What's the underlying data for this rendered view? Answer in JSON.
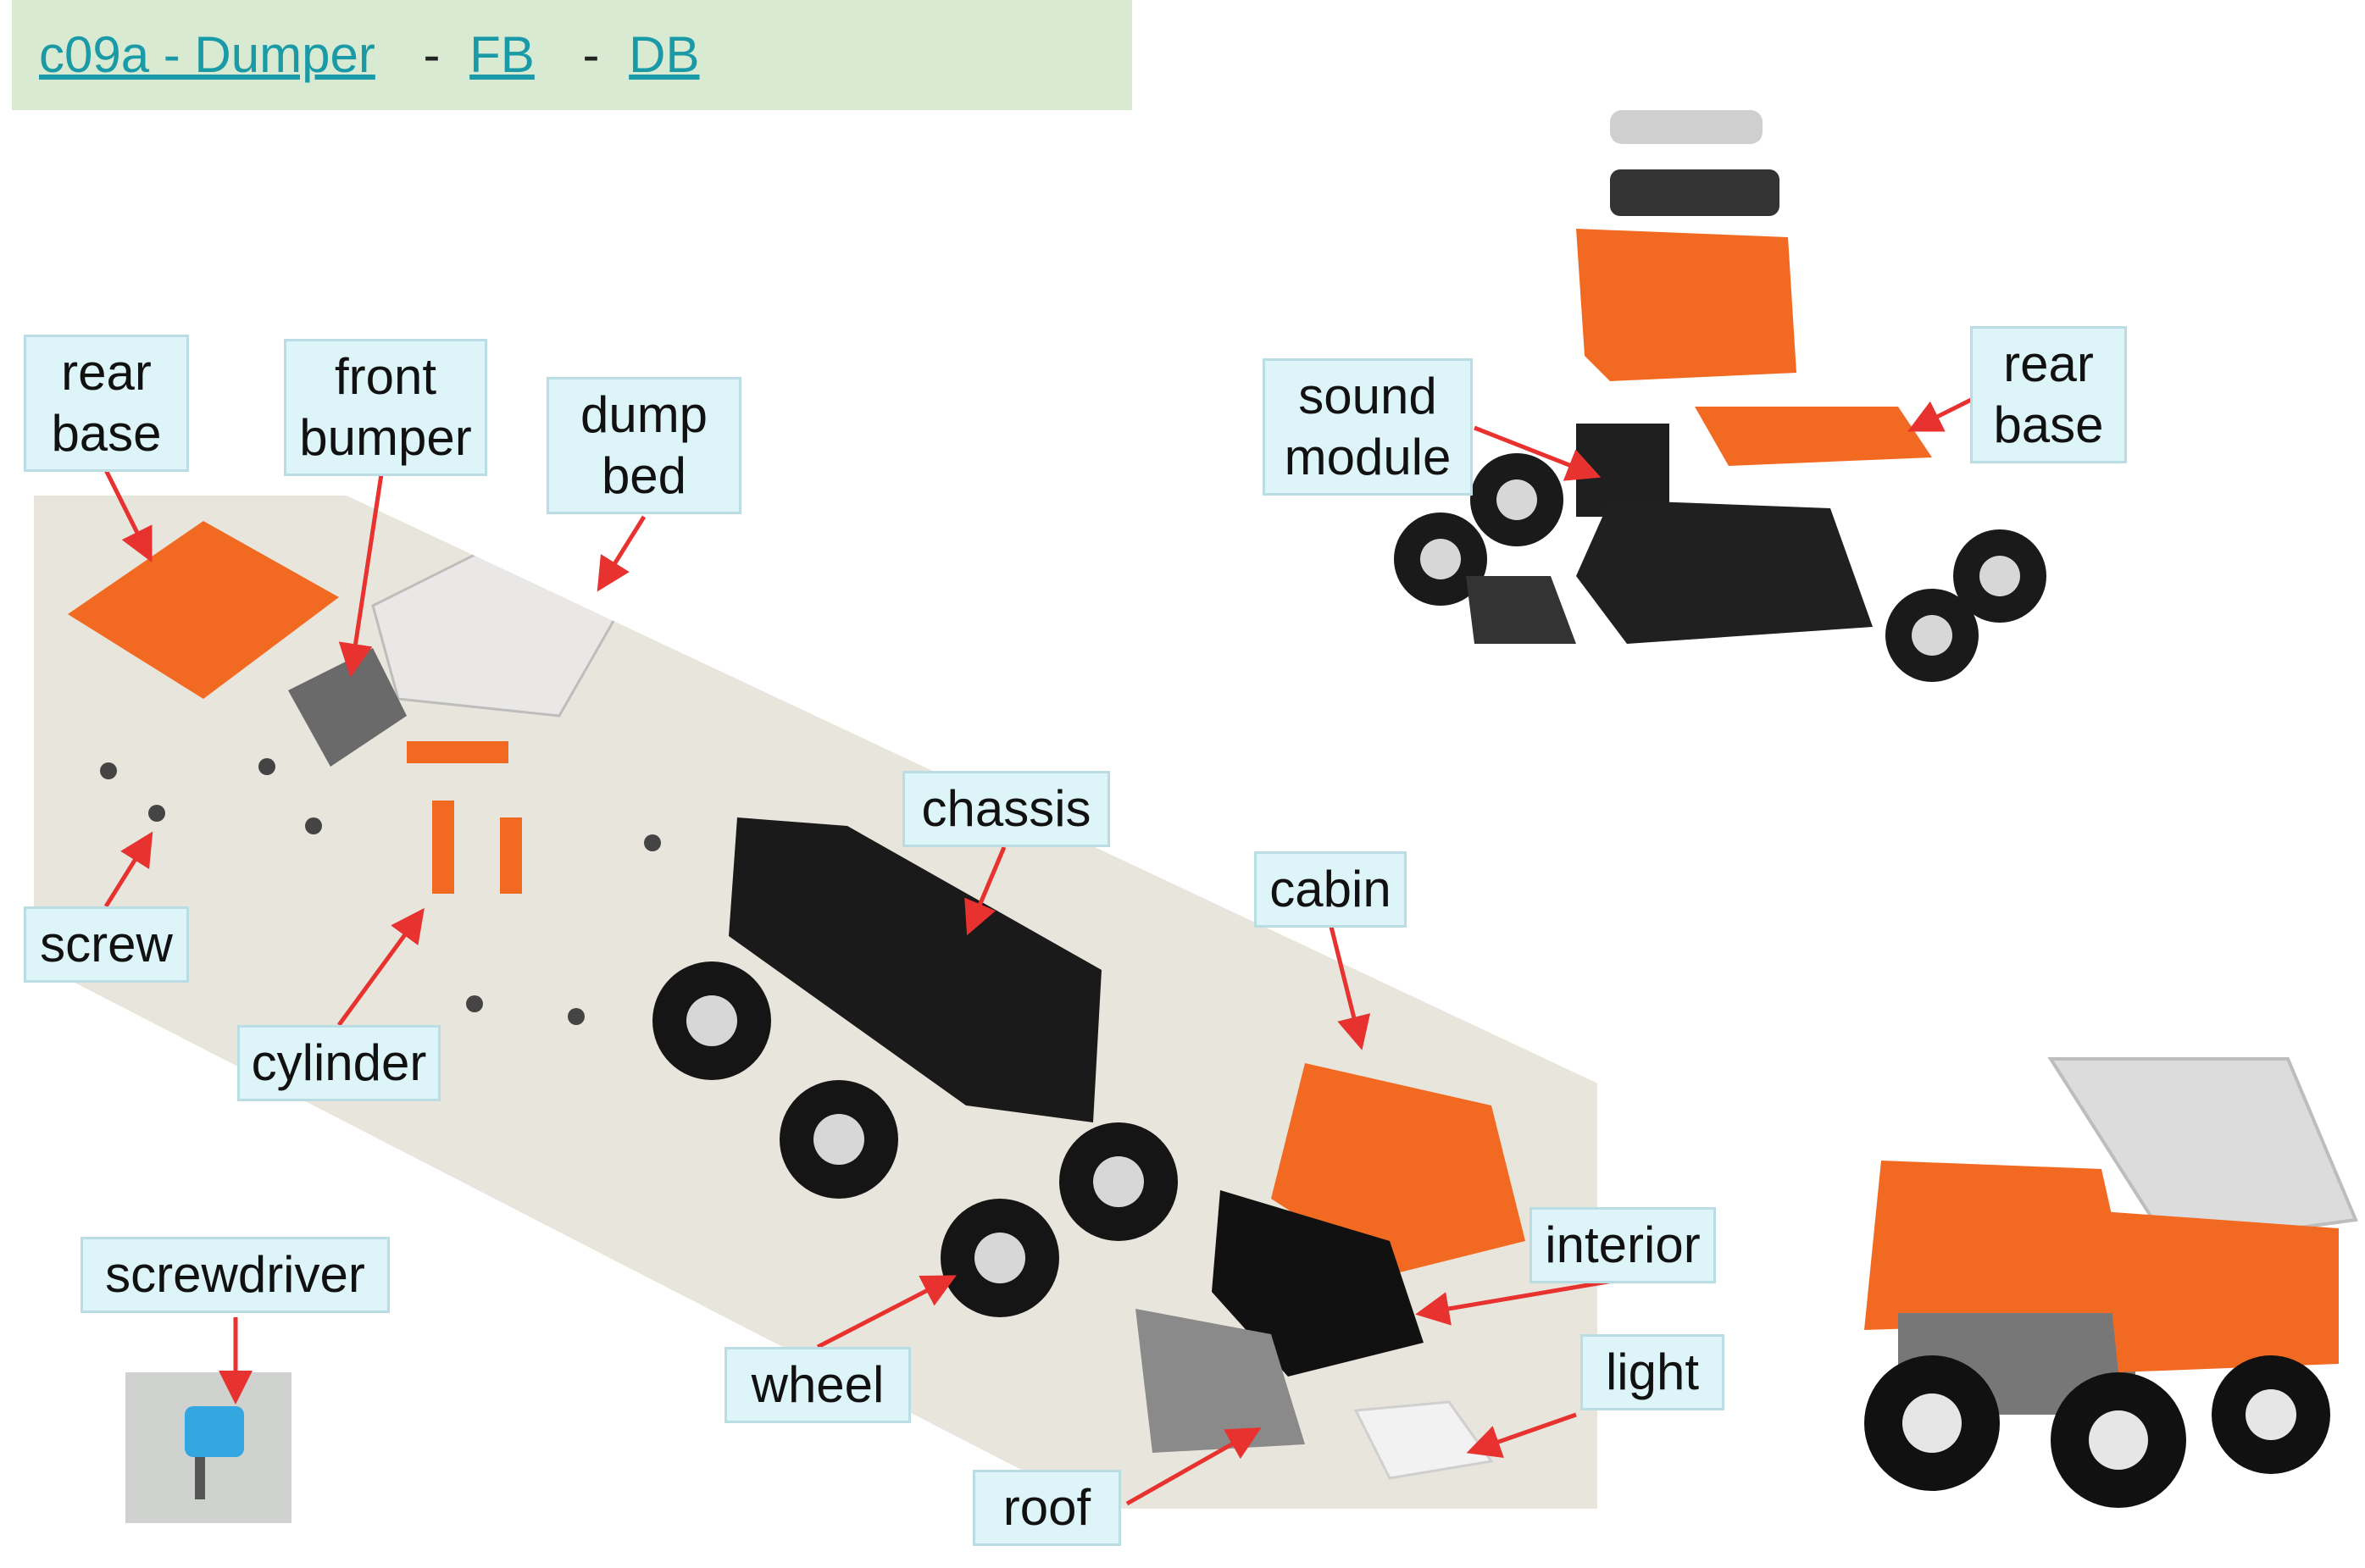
{
  "header": {
    "title_link": "c09a - Dumper",
    "fb_link": "FB",
    "db_link": "DB",
    "separator": "-"
  },
  "labels": {
    "rear_base_left": "rear base",
    "front_bumper": "front bumper",
    "dump_bed": "dump bed",
    "screw": "screw",
    "cylinder": "cylinder",
    "chassis": "chassis",
    "cabin": "cabin",
    "screwdriver": "screwdriver",
    "interior": "interior",
    "wheel": "wheel",
    "light": "light",
    "roof": "roof",
    "sound_module": "sound module",
    "rear_base_right": "rear base"
  },
  "colors": {
    "header_bg": "#d9ead3",
    "label_bg": "#ddf5f8",
    "arrow": "#e8322f",
    "orange": "#f26a21",
    "dark": "#1f1f1f"
  }
}
